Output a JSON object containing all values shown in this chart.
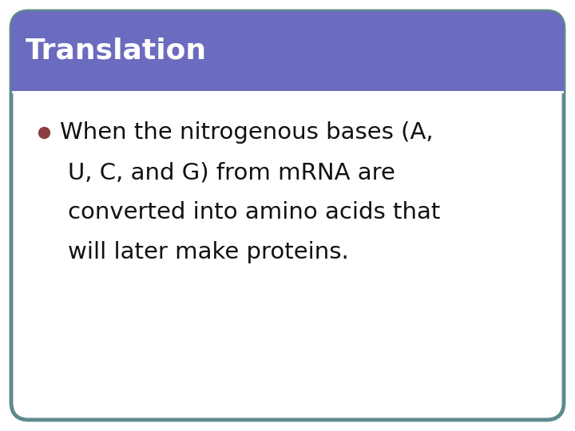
{
  "title": "Translation",
  "title_color": "#ffffff",
  "title_bg_color": "#6b6bbf",
  "body_bg_color": "#ffffff",
  "border_color": "#5f8a8b",
  "separator_color": "#ffffff",
  "bullet_color": "#8b4040",
  "text_color": "#111111",
  "fig_width": 7.2,
  "fig_height": 5.4,
  "dpi": 100,
  "title_fontsize": 26,
  "body_fontsize": 21,
  "border_linewidth": 3.5,
  "body_lines": [
    "When the nitrogenous bases (A,",
    "U, C, and G) from mRNA are",
    "converted into amino acids that",
    "will later make proteins."
  ]
}
